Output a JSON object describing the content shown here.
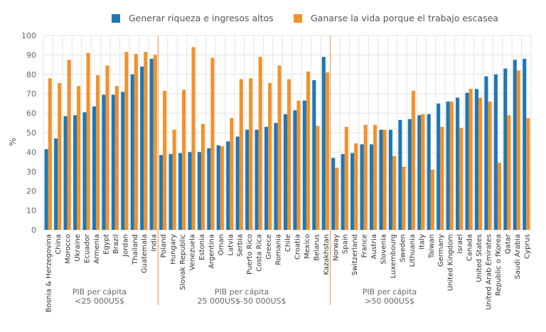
{
  "chart_data": {
    "type": "bar",
    "ylabel": "%",
    "ylim": [
      0,
      100
    ],
    "yticks": [
      0,
      10,
      20,
      30,
      40,
      50,
      60,
      70,
      80,
      90,
      100
    ],
    "grid": true,
    "legend_position": "top",
    "colors": {
      "series0": "#1f77b4",
      "series1": "#f0922b",
      "separator": "#e8a35a"
    },
    "series": [
      {
        "name": "Generar riqueza e ingresos altos",
        "values": [
          41.5,
          47,
          58.5,
          59,
          60.5,
          63.5,
          69.5,
          69.5,
          71,
          80,
          84,
          88,
          38.5,
          39,
          39.5,
          40,
          40,
          42,
          43.5,
          45.5,
          48,
          51.5,
          51.5,
          53,
          55,
          59.5,
          61.5,
          66.5,
          77,
          89,
          37,
          39,
          39.5,
          44,
          44,
          51.5,
          51.5,
          56.5,
          57,
          59,
          59.5,
          65,
          66,
          68,
          70.5,
          72.5,
          79,
          80,
          83,
          87.5,
          88
        ]
      },
      {
        "name": "Ganarse la vida porque el trabajo escasea",
        "values": [
          78,
          75.5,
          87.5,
          74,
          91,
          79.5,
          84.5,
          74,
          91.5,
          90.5,
          91.5,
          90,
          71.5,
          51.5,
          72,
          94,
          54.5,
          88.5,
          43,
          57.5,
          77.5,
          78,
          89,
          75.5,
          84.5,
          77.5,
          66.5,
          81.5,
          53.5,
          81,
          32,
          53,
          44.5,
          54,
          54,
          51.5,
          38,
          32.5,
          71.5,
          59.5,
          31,
          53,
          66,
          52.5,
          72.5,
          68,
          66,
          34.5,
          59,
          82,
          57.5
        ]
      }
    ],
    "categories": [
      "Bosnia & Herzegovina",
      "China",
      "Morocco",
      "Ukraine",
      "Ecuador",
      "Armenia",
      "Egypt",
      "Brazil",
      "Jordan",
      "Thailand",
      "Guatemala",
      "India",
      "Poland",
      "Hungary",
      "Slovak Republic",
      "Venezuela",
      "Estonia",
      "Argentina",
      "Oman",
      "Latvia",
      "Serbia",
      "Puerto Rico",
      "Costa Rica",
      "Greece",
      "Romania",
      "Chile",
      "Croatia",
      "Mexico",
      "Belarus",
      "Kazakhstan",
      "Norway",
      "Spain",
      "Switzerland",
      "France",
      "Austria",
      "Slovenia",
      "Luxembourg",
      "Sweden",
      "Lithuania",
      "Italy",
      "Taiwan",
      "Germany",
      "United Kingdom",
      "Israel",
      "Canada",
      "United States",
      "United Arab Emirates",
      "Republic o fKorea",
      "Qatar",
      "Saudi Arabia",
      "Cyprus"
    ],
    "groups": [
      {
        "label_line1": "PIB per cápita",
        "label_line2": "<25 000US$",
        "count": 12
      },
      {
        "label_line1": "PIB per cápita",
        "label_line2": "25 000US$-50 000US$",
        "count": 18
      },
      {
        "label_line1": "PIB per cápita",
        "label_line2": ">50 000US$",
        "count": 21
      }
    ]
  }
}
